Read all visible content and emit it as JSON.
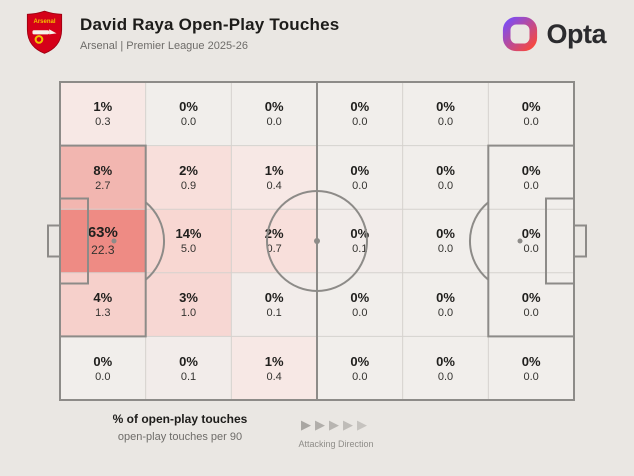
{
  "header": {
    "title": "David Raya Open-Play Touches",
    "subtitle": "Arsenal | Premier League 2025-26",
    "club_crest_label": "Arsenal",
    "brand_name": "Opta"
  },
  "legend": {
    "primary": "% of open-play touches",
    "secondary": "open-play touches per 90",
    "direction": "Attacking Direction"
  },
  "icons": {
    "attacking_arrow": "▶"
  },
  "colors": {
    "background": "#eae7e3",
    "cell_base": "#f1eeeb",
    "heat_max": "#ee8b84",
    "pitch_line": "#8d8b88",
    "grid_line": "#d5d2ce",
    "text_dark": "#1d1c1a",
    "text_muted": "#6e6c69",
    "crest_red": "#d50019",
    "crest_gold": "#f3c200",
    "brand_gradient_start": "#7d4df2",
    "brand_gradient_end": "#f8483c"
  },
  "chart_data": {
    "type": "heatmap",
    "title": "David Raya Open-Play Touches",
    "subtitle": "Arsenal | Premier League 2025-26",
    "grid": {
      "rows": 5,
      "cols": 6
    },
    "primary_metric": "% of open-play touches",
    "secondary_metric": "open-play touches per 90",
    "attacking_direction": "left-to-right",
    "max_pct": 63,
    "cells": [
      [
        {
          "pct": 1,
          "per90": 0.3,
          "color": "#f7e8e5"
        },
        {
          "pct": 0,
          "per90": 0.0,
          "color": "#f1eeeb"
        },
        {
          "pct": 0,
          "per90": 0.0,
          "color": "#f1eeeb"
        },
        {
          "pct": 0,
          "per90": 0.0,
          "color": "#f1eeeb"
        },
        {
          "pct": 0,
          "per90": 0.0,
          "color": "#f1eeeb"
        },
        {
          "pct": 0,
          "per90": 0.0,
          "color": "#f1eeeb"
        }
      ],
      [
        {
          "pct": 8,
          "per90": 2.7,
          "color": "#f2b6b0"
        },
        {
          "pct": 2,
          "per90": 0.9,
          "color": "#f8dfdb"
        },
        {
          "pct": 1,
          "per90": 0.4,
          "color": "#f7e8e5"
        },
        {
          "pct": 0,
          "per90": 0.0,
          "color": "#f1eeeb"
        },
        {
          "pct": 0,
          "per90": 0.0,
          "color": "#f1eeeb"
        },
        {
          "pct": 0,
          "per90": 0.0,
          "color": "#f1eeeb"
        }
      ],
      [
        {
          "pct": 63,
          "per90": 22.3,
          "color": "#ee8b84"
        },
        {
          "pct": 14,
          "per90": 5.0,
          "color": "#f8d7d2"
        },
        {
          "pct": 2,
          "per90": 0.7,
          "color": "#f8dfdb"
        },
        {
          "pct": 0,
          "per90": 0.1,
          "color": "#f2ecea"
        },
        {
          "pct": 0,
          "per90": 0.0,
          "color": "#f1eeeb"
        },
        {
          "pct": 0,
          "per90": 0.0,
          "color": "#f1eeeb"
        }
      ],
      [
        {
          "pct": 4,
          "per90": 1.3,
          "color": "#f6d0cb"
        },
        {
          "pct": 3,
          "per90": 1.0,
          "color": "#f7d7d3"
        },
        {
          "pct": 0,
          "per90": 0.1,
          "color": "#f2ecea"
        },
        {
          "pct": 0,
          "per90": 0.0,
          "color": "#f1eeeb"
        },
        {
          "pct": 0,
          "per90": 0.0,
          "color": "#f1eeeb"
        },
        {
          "pct": 0,
          "per90": 0.0,
          "color": "#f1eeeb"
        }
      ],
      [
        {
          "pct": 0,
          "per90": 0.0,
          "color": "#f1eeeb"
        },
        {
          "pct": 0,
          "per90": 0.1,
          "color": "#f2ecea"
        },
        {
          "pct": 1,
          "per90": 0.4,
          "color": "#f7e8e5"
        },
        {
          "pct": 0,
          "per90": 0.0,
          "color": "#f1eeeb"
        },
        {
          "pct": 0,
          "per90": 0.0,
          "color": "#f1eeeb"
        },
        {
          "pct": 0,
          "per90": 0.0,
          "color": "#f1eeeb"
        }
      ]
    ]
  }
}
